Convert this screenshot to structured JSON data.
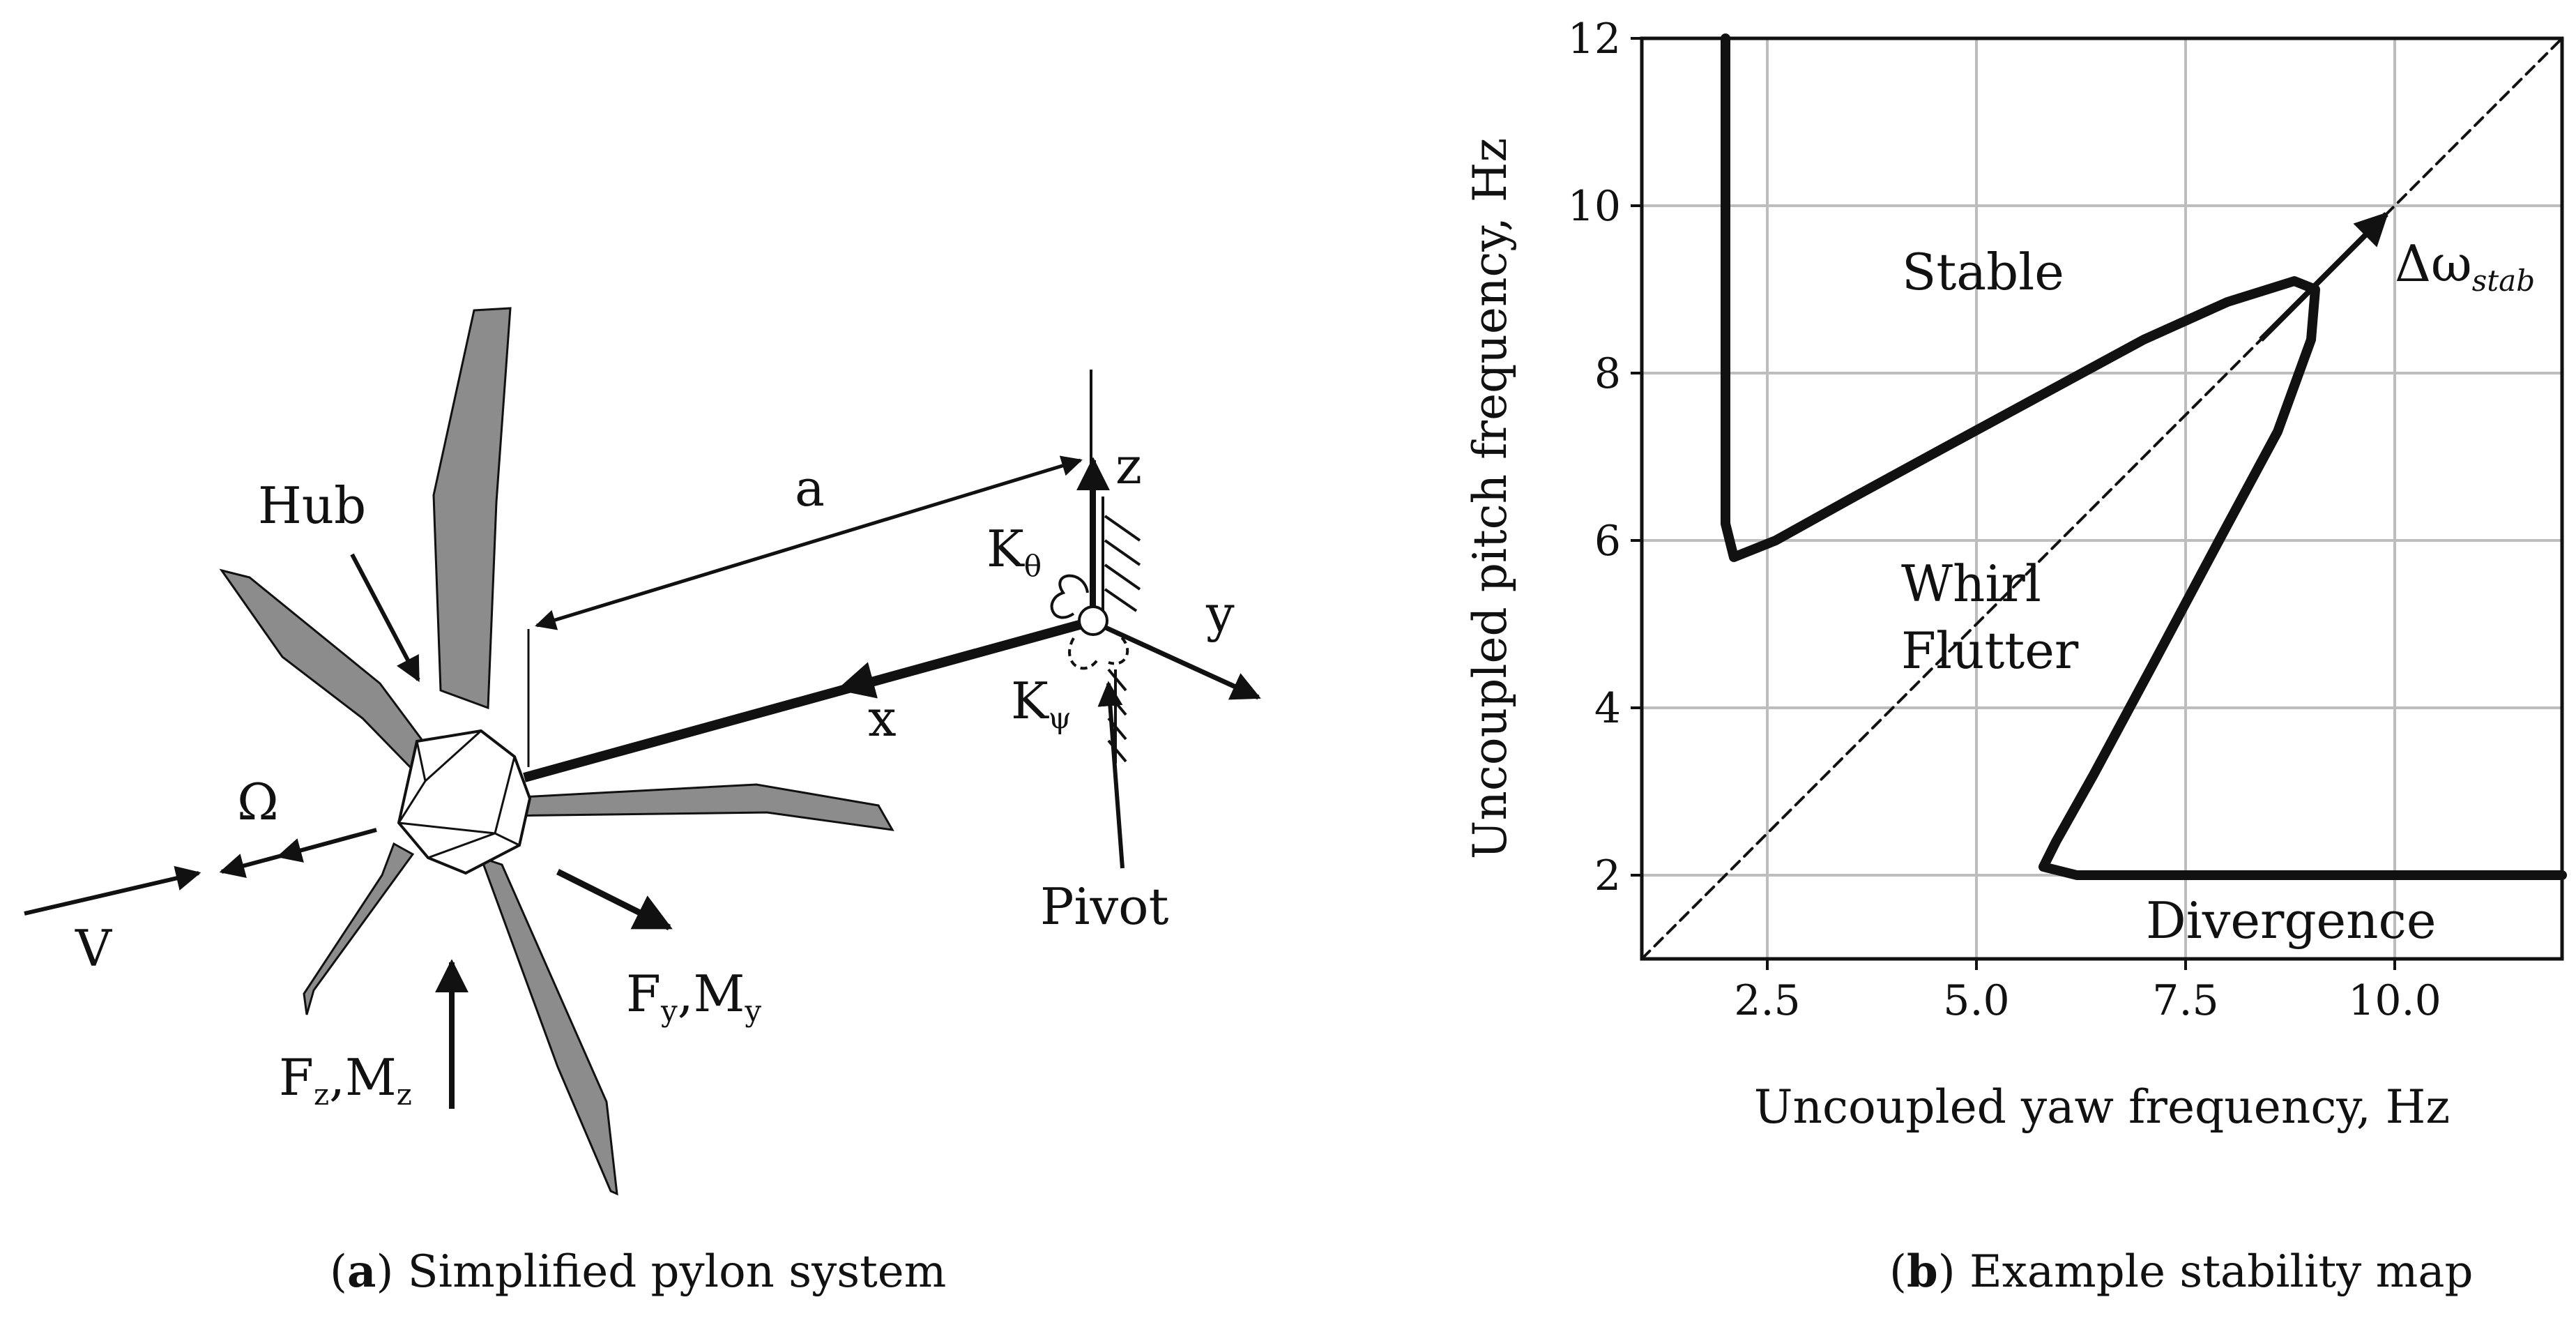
{
  "panel_a": {
    "caption_letter": "a",
    "caption_text": " Simplified pylon system",
    "labels": {
      "hub": "Hub",
      "a": "a",
      "z": "z",
      "y": "y",
      "x": "x",
      "omega": "Ω",
      "v": "V",
      "k_theta": "K",
      "k_theta_sub": "θ",
      "k_psi": "K",
      "k_psi_sub": "ψ",
      "pivot": "Pivot",
      "fy": "F",
      "fy_sub": "y",
      "my": ",M",
      "my_sub": "y",
      "fz": "F",
      "fz_sub": "z",
      "mz": ",M",
      "mz_sub": "z"
    },
    "colors": {
      "blade": "#8c8c8c",
      "stroke": "#111111",
      "hub": "#ffffff"
    }
  },
  "panel_b": {
    "caption_letter": "b",
    "caption_text": " Example stability map",
    "region_labels": {
      "stable": "Stable",
      "whirl": "Whirl",
      "flutter": "Flutter",
      "divergence": "Divergence",
      "delta": "Δω",
      "delta_sub": "stab"
    },
    "chart_data": {
      "type": "line",
      "title": "",
      "xlabel": "Uncoupled yaw frequency, Hz",
      "ylabel": "Uncoupled pitch frequency, Hz",
      "xlim": [
        1.0,
        12.0
      ],
      "ylim": [
        1.0,
        12.0
      ],
      "xticks": [
        2.5,
        5.0,
        7.5,
        10.0
      ],
      "xtick_labels": [
        "2.5",
        "5.0",
        "7.5",
        "10.0"
      ],
      "yticks": [
        2,
        4,
        6,
        8,
        10,
        12
      ],
      "ytick_labels": [
        "2",
        "4",
        "6",
        "8",
        "10",
        "12"
      ],
      "grid": true,
      "series": [
        {
          "name": "stability boundary",
          "style": "solid",
          "x": [
            2.0,
            2.0,
            2.0,
            2.1,
            2.6,
            3.5,
            4.6,
            5.8,
            7.0,
            8.0,
            8.8,
            9.05,
            9.0,
            8.6,
            7.9,
            7.1,
            6.4,
            5.95,
            5.8,
            6.2,
            7.5,
            9.0,
            10.5,
            12.0
          ],
          "y": [
            12.0,
            9.0,
            6.2,
            5.8,
            6.0,
            6.5,
            7.1,
            7.75,
            8.4,
            8.85,
            9.1,
            9.0,
            8.4,
            7.3,
            6.0,
            4.5,
            3.2,
            2.4,
            2.1,
            2.0,
            2.0,
            2.0,
            2.0,
            2.0
          ]
        },
        {
          "name": "equal frequency line",
          "style": "dashed",
          "x": [
            1.0,
            12.0
          ],
          "y": [
            1.0,
            12.0
          ]
        }
      ],
      "annotations": [
        {
          "name": "delta-arrow",
          "from": [
            8.4,
            8.4
          ],
          "to": [
            9.9,
            9.9
          ]
        }
      ]
    }
  }
}
